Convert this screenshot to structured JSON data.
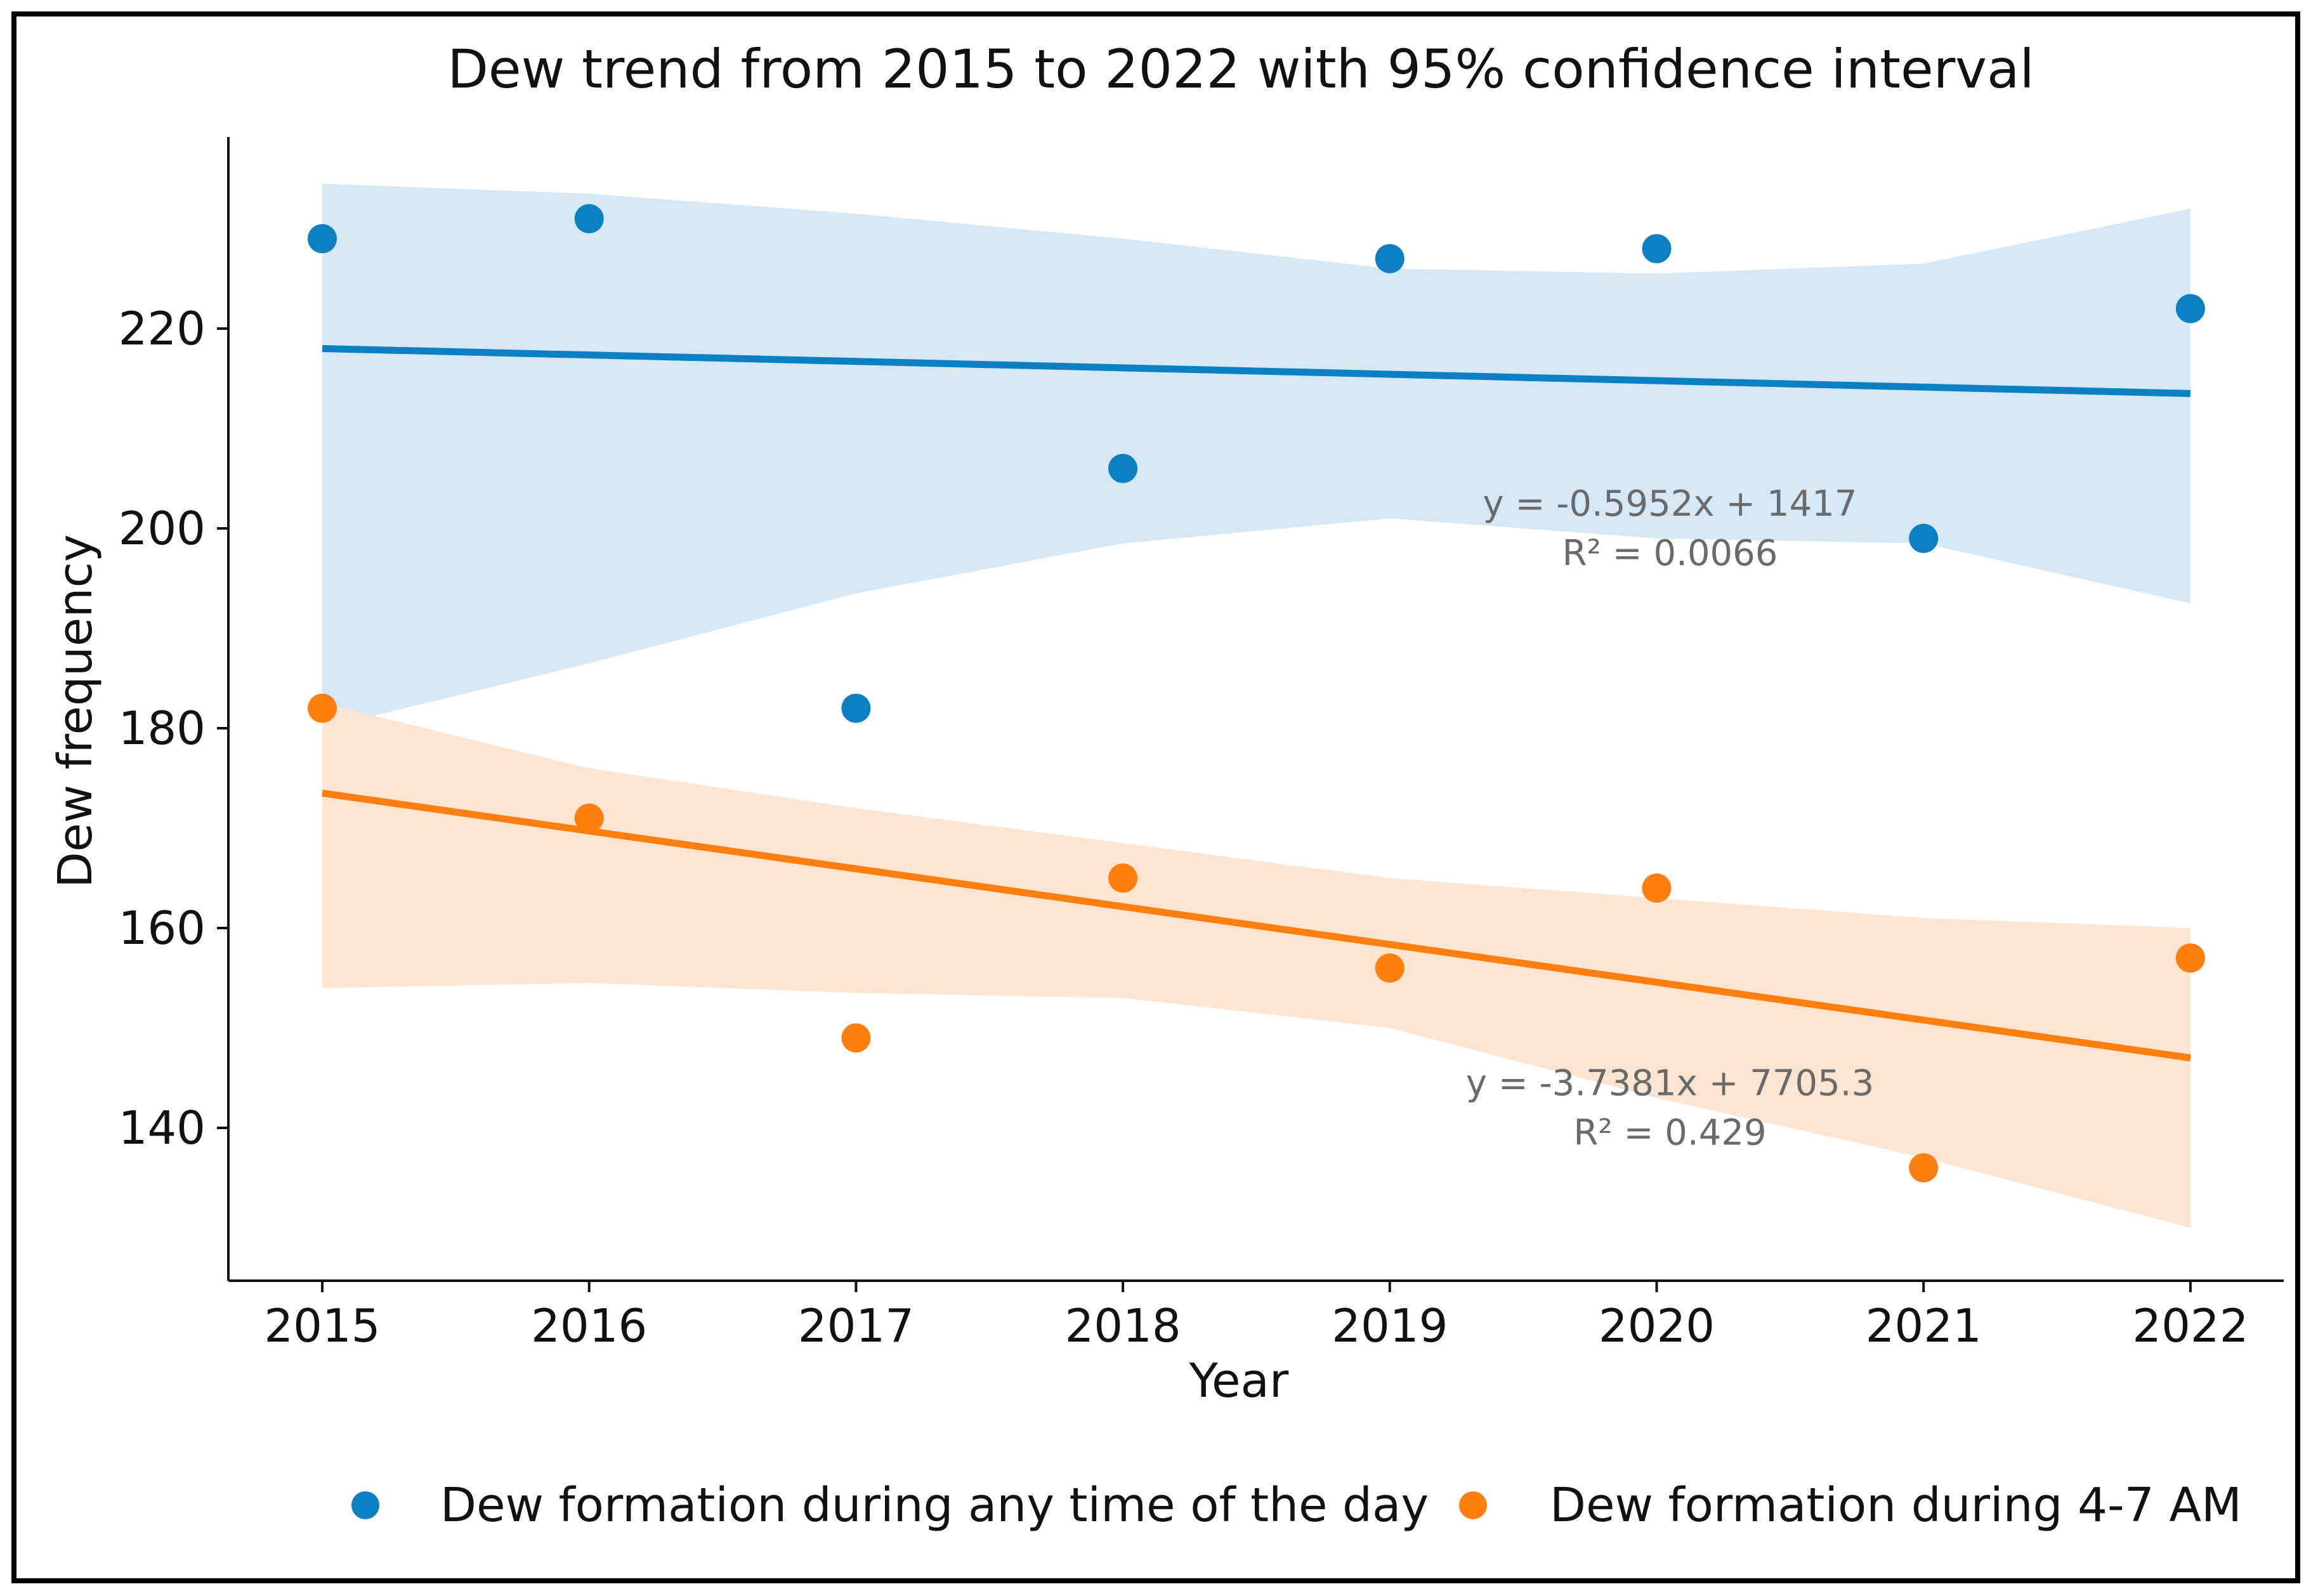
{
  "chart_data": {
    "type": "scatter",
    "title": "Dew trend from 2015 to 2022 with 95% confidence interval",
    "xlabel": "Year",
    "ylabel": "Dew frequency",
    "xlim": [
      2014.65,
      2022.35
    ],
    "ylim": [
      125,
      239
    ],
    "x_ticks": [
      2015,
      2016,
      2017,
      2018,
      2019,
      2020,
      2021,
      2022
    ],
    "y_ticks": [
      140,
      160,
      180,
      200,
      220
    ],
    "legend_position": "bottom",
    "grid": false,
    "series": [
      {
        "name": "Dew formation during any time of the day",
        "color": "#0a7fc1",
        "band_color": "#d6e8f5",
        "x": [
          2015,
          2016,
          2017,
          2018,
          2019,
          2020,
          2021,
          2022
        ],
        "values": [
          229,
          231,
          182,
          206,
          227,
          228,
          199,
          222
        ],
        "trend": {
          "x": [
            2015,
            2022
          ],
          "y": [
            218,
            213.5
          ]
        },
        "ci_upper": [
          [
            2015,
            234.5
          ],
          [
            2016,
            233.5
          ],
          [
            2017,
            231.5
          ],
          [
            2018,
            229
          ],
          [
            2019,
            226
          ],
          [
            2020,
            225.5
          ],
          [
            2020.5,
            226
          ],
          [
            2021,
            226.5
          ],
          [
            2022,
            232
          ]
        ],
        "ci_lower": [
          [
            2015,
            180
          ],
          [
            2016,
            186.5
          ],
          [
            2017,
            193.5
          ],
          [
            2018,
            198.5
          ],
          [
            2019,
            201
          ],
          [
            2020,
            199
          ],
          [
            2021,
            198.5
          ],
          [
            2022,
            192.5
          ]
        ],
        "annotation": {
          "equation": "y = -0.5952x + 1417",
          "r2": "R² = 0.0066",
          "x": 2020.05,
          "y": 200
        }
      },
      {
        "name": "Dew formation during 4-7 AM",
        "color": "#ff7f0e",
        "band_color": "#fde5d2",
        "x": [
          2015,
          2016,
          2017,
          2018,
          2019,
          2020,
          2021,
          2022
        ],
        "values": [
          182,
          171,
          149,
          165,
          156,
          164,
          136,
          157
        ],
        "trend": {
          "x": [
            2015,
            2022
          ],
          "y": [
            173.5,
            147
          ]
        },
        "ci_upper": [
          [
            2015,
            182.5
          ],
          [
            2016,
            176
          ],
          [
            2017,
            172
          ],
          [
            2018,
            168.5
          ],
          [
            2019,
            165
          ],
          [
            2020,
            163
          ],
          [
            2021,
            161
          ],
          [
            2022,
            160
          ]
        ],
        "ci_lower": [
          [
            2015,
            154
          ],
          [
            2016,
            154.5
          ],
          [
            2017,
            153.5
          ],
          [
            2018,
            153
          ],
          [
            2019,
            150
          ],
          [
            2020,
            143
          ],
          [
            2021,
            137
          ],
          [
            2022,
            130
          ]
        ],
        "annotation": {
          "equation": "y = -3.7381x + 7705.3",
          "r2": "R² = 0.429",
          "x": 2020.05,
          "y": 142
        }
      }
    ]
  }
}
